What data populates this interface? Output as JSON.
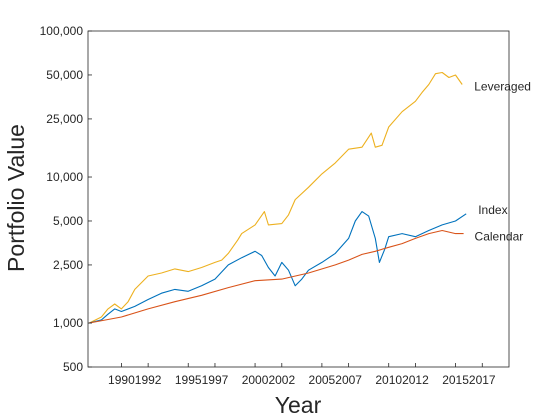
{
  "chart_data": {
    "type": "line",
    "title": "",
    "xlabel": "Year",
    "ylabel": "Portfolio Value",
    "y_scale": "log",
    "xlim": [
      1987.5,
      2019.0
    ],
    "ylim": [
      500,
      100000
    ],
    "grid": false,
    "x_ticks": [
      1990,
      1992,
      1995,
      1997,
      2000,
      2002,
      2005,
      2007,
      2010,
      2012,
      2015,
      2017
    ],
    "x_tick_labels": [
      "1990",
      "1992",
      "1995",
      "1997",
      "2000",
      "2002",
      "2005",
      "2007",
      "2010",
      "2012",
      "2015",
      "2017"
    ],
    "y_ticks": [
      500,
      1000,
      2500,
      5000,
      10000,
      25000,
      50000,
      100000
    ],
    "y_tick_labels": [
      "500",
      "1,000",
      "2,500",
      "5,000",
      "10,000",
      "25,000",
      "50,000",
      "100,000"
    ],
    "series": [
      {
        "name": "Leveraged",
        "color": "#EDB120",
        "x": [
          1987.6,
          1988.5,
          1989.0,
          1989.5,
          1990.0,
          1990.5,
          1991.0,
          1992.0,
          1993.0,
          1994.0,
          1995.0,
          1996.0,
          1997.0,
          1997.5,
          1998.0,
          1998.7,
          1999.0,
          2000.0,
          2000.7,
          2001.0,
          2002.0,
          2002.5,
          2003.0,
          2004.0,
          2005.0,
          2006.0,
          2007.0,
          2008.0,
          2008.7,
          2009.0,
          2009.5,
          2010.0,
          2011.0,
          2012.0,
          2012.5,
          2013.0,
          2013.5,
          2014.0,
          2014.5,
          2015.0,
          2015.5
        ],
        "values": [
          1000,
          1100,
          1250,
          1350,
          1250,
          1400,
          1700,
          2100,
          2200,
          2350,
          2250,
          2400,
          2600,
          2700,
          3000,
          3700,
          4100,
          4700,
          5800,
          4700,
          4800,
          5500,
          7000,
          8500,
          10500,
          12500,
          15500,
          16000,
          20000,
          16000,
          16500,
          22000,
          28000,
          33000,
          38000,
          43000,
          51000,
          52000,
          48000,
          50000,
          43000
        ]
      },
      {
        "name": "Index",
        "color": "#0072BD",
        "x": [
          1987.6,
          1988.5,
          1989.0,
          1989.5,
          1990.0,
          1991.0,
          1992.0,
          1993.0,
          1994.0,
          1995.0,
          1996.0,
          1997.0,
          1998.0,
          1999.0,
          2000.0,
          2000.5,
          2001.0,
          2001.5,
          2002.0,
          2002.5,
          2003.0,
          2003.5,
          2004.0,
          2005.0,
          2006.0,
          2007.0,
          2007.5,
          2008.0,
          2008.5,
          2009.0,
          2009.3,
          2009.7,
          2010.0,
          2011.0,
          2012.0,
          2013.0,
          2014.0,
          2015.0,
          2015.8
        ],
        "values": [
          1000,
          1050,
          1150,
          1250,
          1200,
          1300,
          1450,
          1600,
          1700,
          1650,
          1800,
          2000,
          2500,
          2800,
          3100,
          2900,
          2400,
          2100,
          2600,
          2300,
          1800,
          2000,
          2300,
          2600,
          3000,
          3800,
          5000,
          5800,
          5400,
          3800,
          2600,
          3200,
          3900,
          4100,
          3900,
          4300,
          4700,
          5000,
          5600
        ]
      },
      {
        "name": "Calendar",
        "color": "#D95319",
        "x": [
          1987.6,
          1990.0,
          1992.0,
          1994.0,
          1996.0,
          1998.0,
          2000.0,
          2002.0,
          2004.0,
          2006.0,
          2007.0,
          2008.0,
          2009.0,
          2010.0,
          2011.0,
          2012.0,
          2013.0,
          2014.0,
          2015.0,
          2015.6
        ],
        "values": [
          1000,
          1100,
          1250,
          1400,
          1550,
          1750,
          1950,
          2000,
          2200,
          2500,
          2700,
          2950,
          3100,
          3300,
          3500,
          3800,
          4100,
          4300,
          4100,
          4100
        ]
      }
    ]
  }
}
